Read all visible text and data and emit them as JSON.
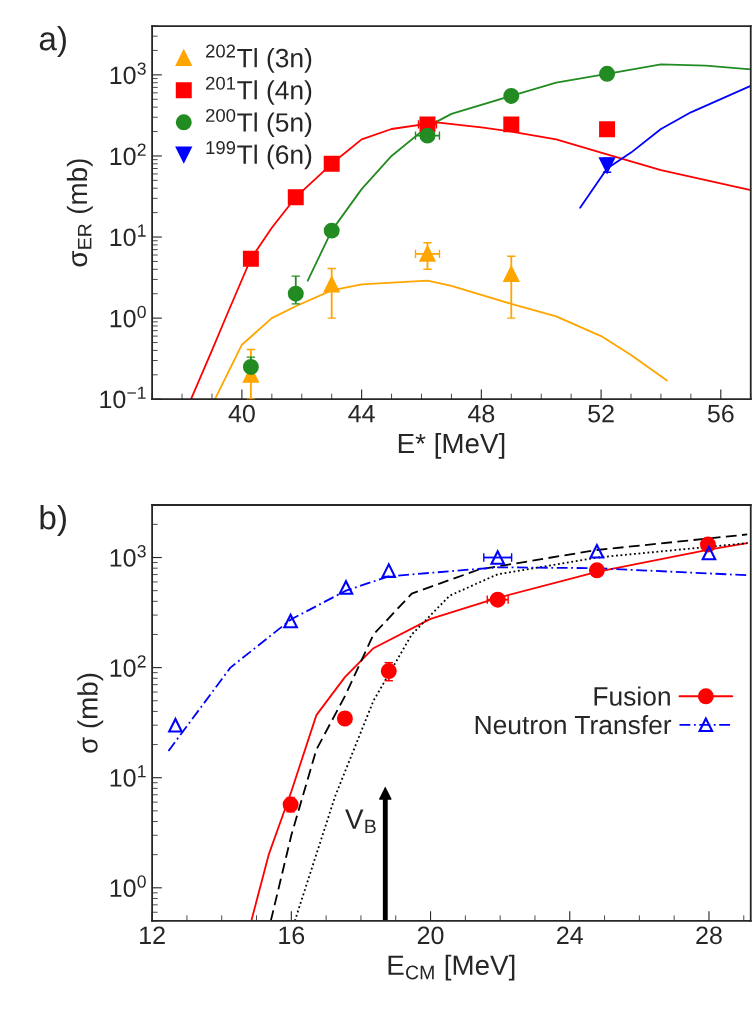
{
  "chart_data": [
    {
      "type": "scatter",
      "title": "a)",
      "xlabel": "E* [MeV]",
      "ylabel": "σ$_{ER}$ (mb)",
      "log": "y",
      "xlim": [
        37,
        57
      ],
      "xticks": [
        40,
        44,
        48,
        52,
        56
      ],
      "ylim": [
        0.1,
        4000
      ],
      "yticks": [
        {
          "value": 0.1,
          "label": "10$^{−1}$"
        },
        {
          "value": 1,
          "label": "10$^{0}$"
        },
        {
          "value": 10,
          "label": "10$^{1}$"
        },
        {
          "value": 100,
          "label": "10$^{2}$"
        },
        {
          "value": 1000,
          "label": "10$^{3}$"
        }
      ],
      "legend": "top left",
      "grid": false,
      "series": [
        {
          "type": "line",
          "color": "#ffa500",
          "x": [
            39.1,
            40,
            41,
            41.8,
            43,
            44,
            46.2,
            47,
            49,
            50.5,
            52,
            53,
            54.2
          ],
          "values": [
            0.1,
            0.47,
            1.0,
            1.4,
            2.2,
            2.6,
            2.9,
            2.5,
            1.5,
            1.05,
            0.6,
            0.35,
            0.17
          ]
        },
        {
          "type": "line",
          "color": "#ff0000",
          "x": [
            38.3,
            39,
            39.5,
            40.3,
            41,
            41.8,
            43,
            44,
            45,
            46.5,
            48,
            49,
            50.5,
            52,
            54,
            57
          ],
          "values": [
            0.1,
            0.4,
            1.1,
            5.4,
            13,
            31,
            80,
            160,
            215,
            260,
            225,
            200,
            160,
            110,
            67,
            38
          ]
        },
        {
          "type": "line",
          "color": "#228b22",
          "x": [
            42.2,
            43,
            44,
            45,
            46.2,
            47,
            49,
            50.5,
            52.2,
            54,
            55.5,
            57
          ],
          "values": [
            2.9,
            12,
            39,
            100,
            230,
            330,
            550,
            800,
            1030,
            1350,
            1300,
            1170
          ]
        },
        {
          "type": "line",
          "color": "#0000ff",
          "x": [
            51.3,
            52.2,
            53,
            54,
            55,
            57
          ],
          "values": [
            23,
            70,
            110,
            215,
            345,
            730
          ]
        },
        {
          "name": "$^{202}$Tl (3n)",
          "color": "#ffa500",
          "marker": "triangle",
          "x": [
            40.3,
            43,
            46.2,
            49
          ],
          "values": [
            0.2,
            2.6,
            6.2,
            3.5
          ],
          "errors": [
            [
              0.1,
              0.41
            ],
            [
              1.0,
              4.1
            ],
            [
              4.0,
              8.5
            ],
            [
              1.0,
              5.8
            ]
          ],
          "xerrors": [
            null,
            null,
            0.4,
            null
          ]
        },
        {
          "name": "$^{201}$Tl (4n)",
          "color": "#ff0000",
          "marker": "square",
          "x": [
            40.3,
            41.8,
            43,
            46.2,
            49,
            52.2
          ],
          "values": [
            5.4,
            31,
            80,
            245,
            245,
            213
          ],
          "xerrors": [
            null,
            null,
            null,
            0.3,
            null,
            null
          ]
        },
        {
          "name": "$^{200}$Tl (5n)",
          "color": "#228b22",
          "marker": "circle",
          "x": [
            40.3,
            41.8,
            43,
            46.2,
            49,
            52.2
          ],
          "values": [
            0.25,
            2.0,
            12,
            178,
            550,
            1030
          ],
          "errors": [
            [
              0.17,
              0.33
            ],
            [
              1.5,
              3.3
            ],
            null,
            null,
            null,
            null
          ],
          "xerrors": [
            null,
            null,
            null,
            0.4,
            null,
            null
          ]
        },
        {
          "name": "$^{199}$Tl (6n)",
          "color": "#0000ff",
          "marker": "triangle_down",
          "x": [
            52.2
          ],
          "values": [
            77
          ],
          "errors": [
            [
              63,
              94
            ]
          ]
        }
      ]
    },
    {
      "type": "scatter",
      "title": "b)",
      "xlabel": "E$_{CM}$ [MeV]",
      "ylabel": "σ (mb)",
      "log": "y",
      "xlim": [
        12,
        29.2
      ],
      "xticks": [
        12,
        16,
        20,
        24,
        28
      ],
      "ylim": [
        0.5,
        3000
      ],
      "yticks": [
        {
          "value": 1,
          "label": "10$^{0}$"
        },
        {
          "value": 10,
          "label": "10$^{1}$"
        },
        {
          "value": 100,
          "label": "10$^{2}$"
        },
        {
          "value": 1000,
          "label": "10$^{3}$"
        }
      ],
      "legend": "right",
      "grid": false,
      "ref_lines": [
        {
          "axis": "x",
          "value": 18.7,
          "label": "V$_{B}$"
        }
      ],
      "series": [
        {
          "type": "line",
          "color": "#ff0000",
          "line_style": "solid",
          "x": [
            14.85,
            15.35,
            16,
            16.72,
            17.54,
            18.36,
            20,
            21.93,
            24.78,
            28,
            29.1
          ],
          "values": [
            0.5,
            2.0,
            7.5,
            37,
            82,
            150,
            277,
            430,
            740,
            1180,
            1350
          ]
        },
        {
          "type": "line",
          "color": "#000000",
          "line_style": "dashed",
          "x": [
            15.41,
            16,
            16.72,
            17.54,
            18.36,
            19.46,
            21.4,
            24.78,
            29.1
          ],
          "values": [
            0.5,
            3.0,
            18,
            55,
            200,
            470,
            780,
            1170,
            1620
          ]
        },
        {
          "type": "line",
          "color": "#000000",
          "line_style": "dotted",
          "x": [
            16.1,
            17.26,
            18.36,
            19.46,
            20.55,
            21.93,
            24.78,
            29.1
          ],
          "values": [
            0.5,
            6.8,
            50,
            200,
            450,
            705,
            1000,
            1350
          ]
        },
        {
          "type": "line",
          "color": "#0000ff",
          "line_style": "dashdot",
          "x": [
            12.47,
            14.25,
            16,
            17.57,
            18.8,
            21.93,
            24.78,
            29.1
          ],
          "values": [
            17.5,
            100,
            275,
            500,
            675,
            815,
            800,
            690
          ]
        },
        {
          "name": "Fusion",
          "color": "#ff0000",
          "marker": "circle",
          "line_style": "solid",
          "x": [
            15.98,
            17.54,
            18.8,
            21.93,
            24.78,
            27.97
          ],
          "values": [
            5.7,
            34.5,
            93,
            414,
            765,
            1310
          ],
          "errors": [
            [
              4.9,
              6.6
            ],
            null,
            [
              76,
              111
            ],
            null,
            null,
            null
          ],
          "xerrors": [
            null,
            null,
            null,
            0.3,
            null,
            null
          ]
        },
        {
          "name": "Neutron Transfer",
          "color": "#0000ff",
          "marker": "triangle_open",
          "line_style": "dashdot",
          "x": [
            12.67,
            15.98,
            17.57,
            18.8,
            21.93,
            24.78,
            28.0
          ],
          "values": [
            30,
            265,
            535,
            760,
            1000,
            1140,
            1100
          ],
          "xerrors": [
            null,
            null,
            null,
            null,
            0.4,
            null,
            null
          ]
        }
      ]
    }
  ]
}
